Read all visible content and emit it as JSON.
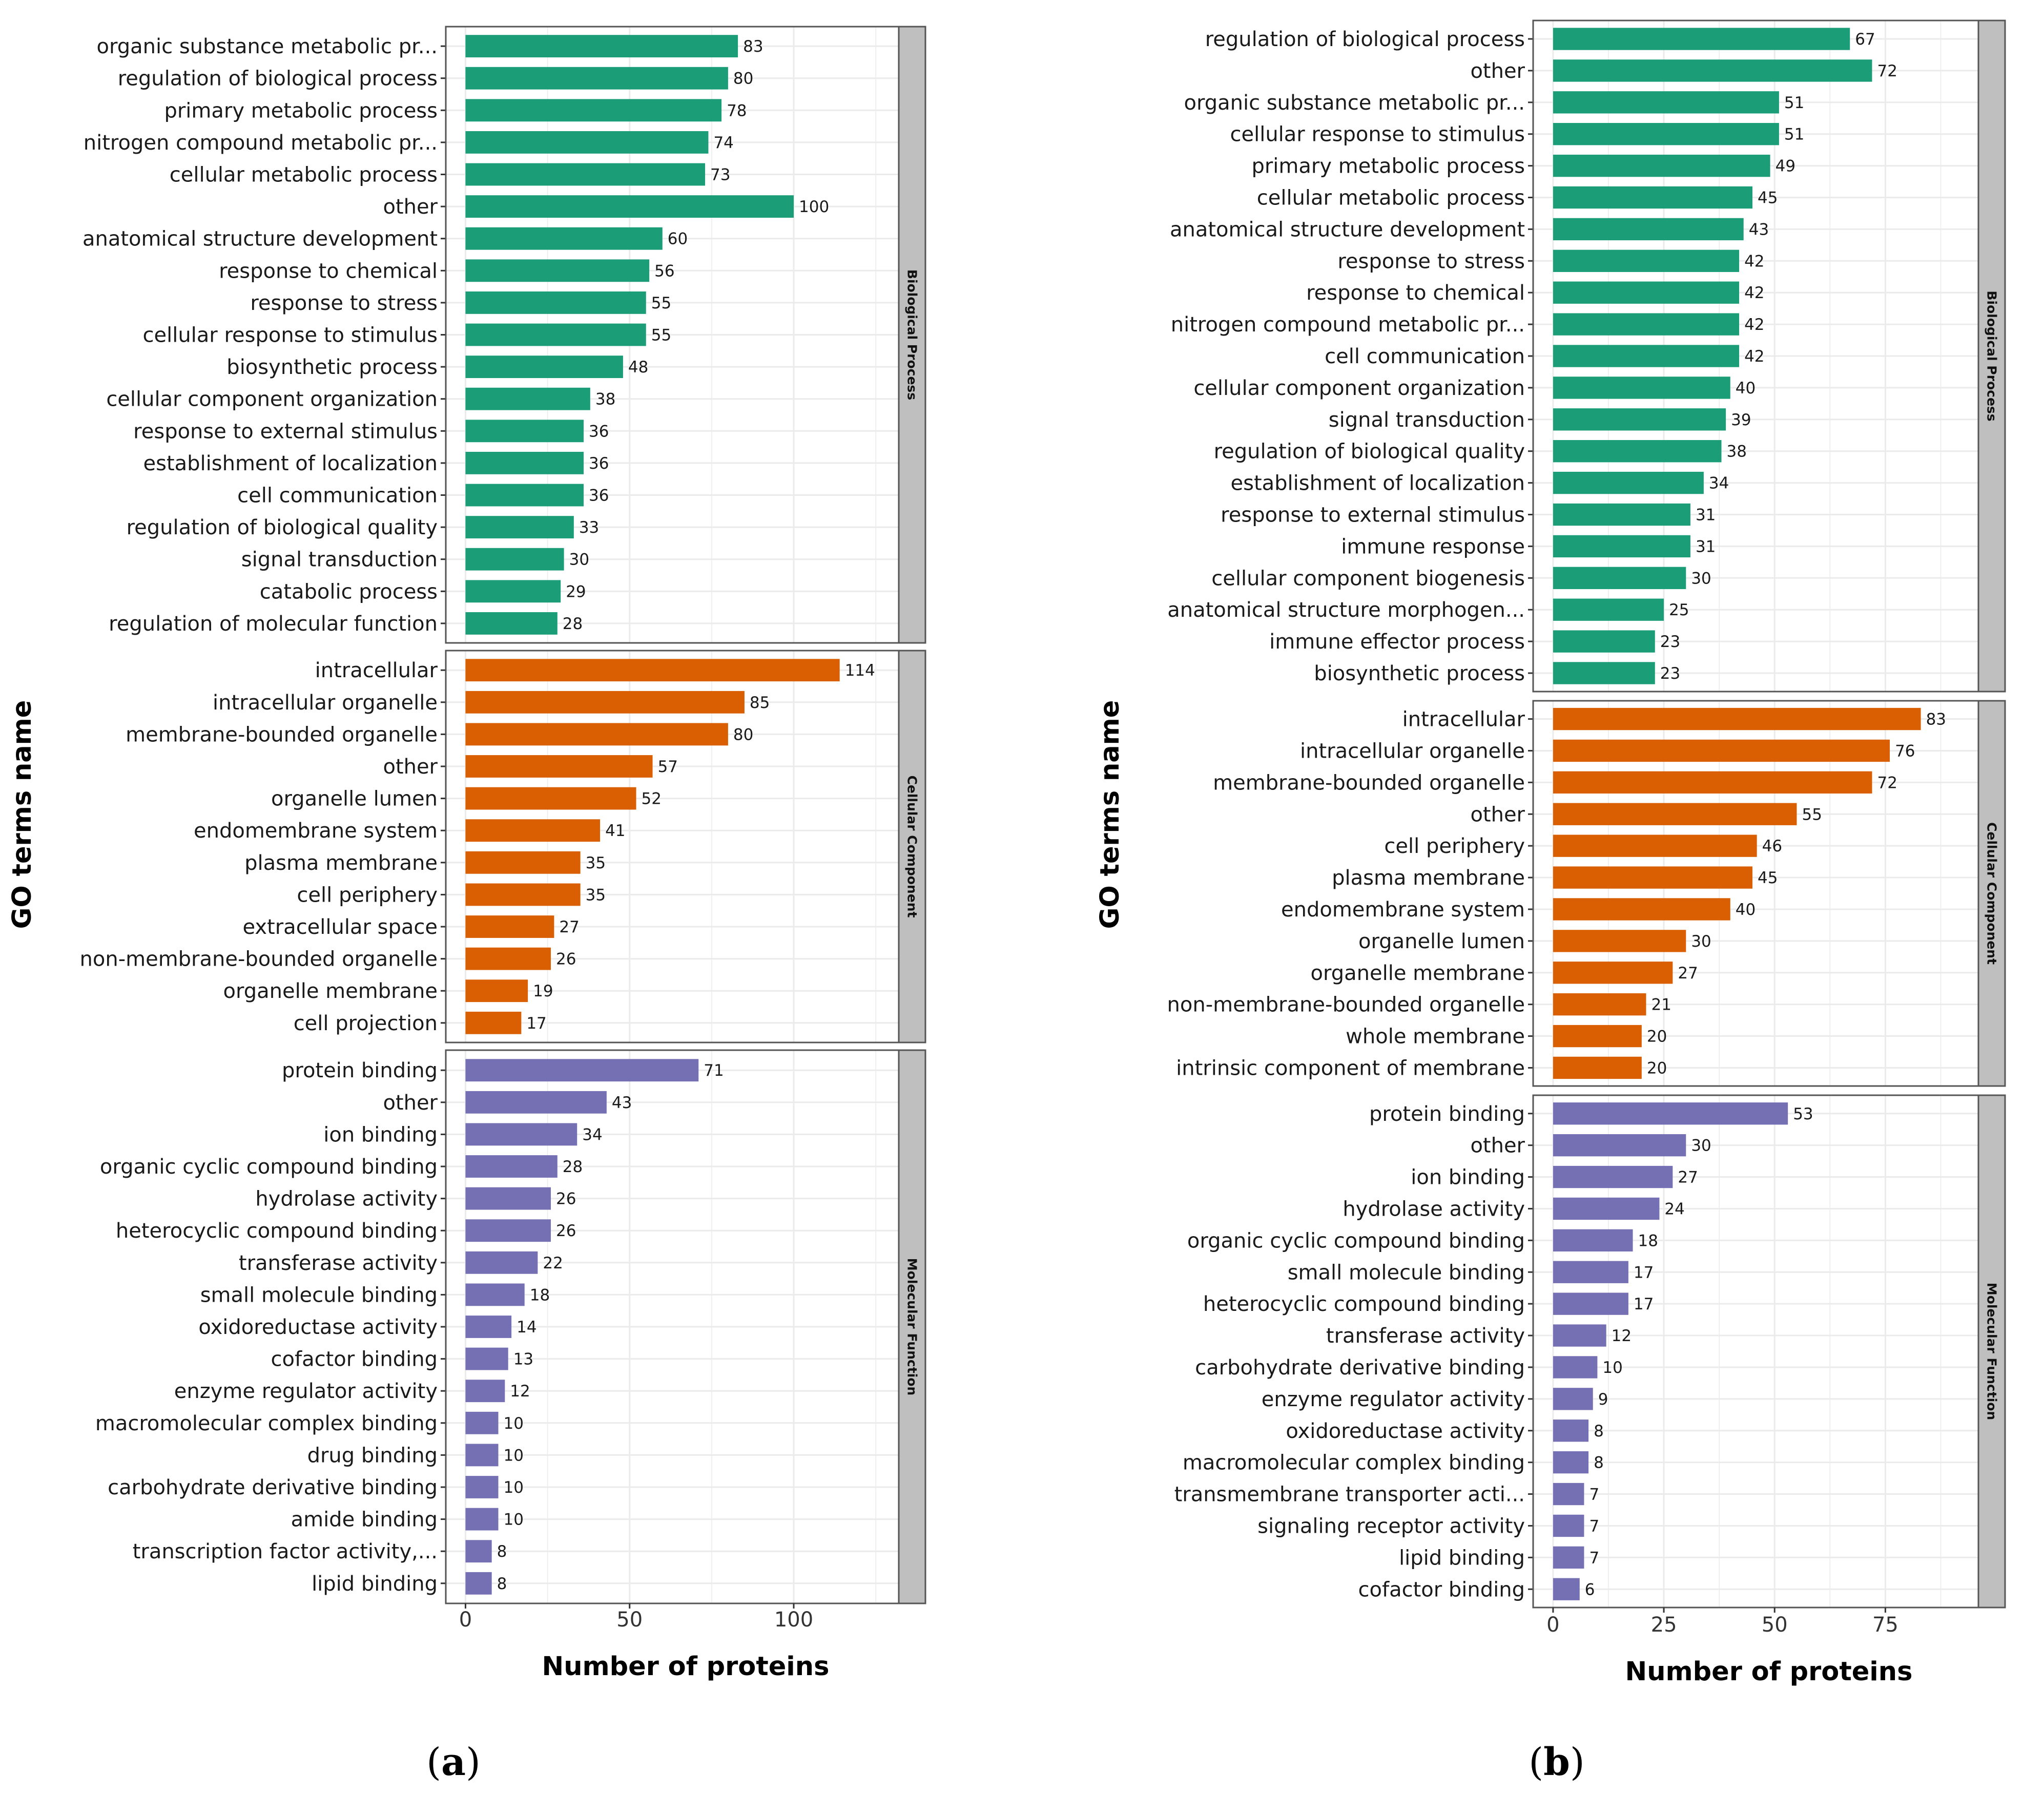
{
  "colors": {
    "biological_process": "#1b9e77",
    "cellular_component": "#d95f02",
    "molecular_function": "#7570b3",
    "strip": "#bfbfbf",
    "grid": "#ebebeb",
    "border": "#555555"
  },
  "chart_data": [
    {
      "id": "a",
      "panel_letter": "a",
      "type": "bar",
      "orientation": "horizontal",
      "xlabel": "Number of proteins",
      "ylabel": "GO terms name",
      "xlim": [
        -6,
        132
      ],
      "xticks": [
        0,
        50,
        100
      ],
      "grid": true,
      "facets": [
        {
          "name": "Biological Process",
          "color_key": "biological_process",
          "categories": [
            "organic substance metabolic pr...",
            "regulation of biological process",
            "primary metabolic process",
            "nitrogen compound metabolic pr...",
            "cellular metabolic process",
            "other",
            "anatomical structure development",
            "response to chemical",
            "response to stress",
            "cellular response to stimulus",
            "biosynthetic process",
            "cellular component organization",
            "response to external stimulus",
            "establishment of localization",
            "cell communication",
            "regulation of biological quality",
            "signal transduction",
            "catabolic process",
            "regulation of molecular function"
          ],
          "values": [
            83,
            80,
            78,
            74,
            73,
            100,
            60,
            56,
            55,
            55,
            48,
            38,
            36,
            36,
            36,
            33,
            30,
            29,
            28
          ]
        },
        {
          "name": "Cellular Component",
          "color_key": "cellular_component",
          "categories": [
            "intracellular",
            "intracellular organelle",
            "membrane-bounded organelle",
            "other",
            "organelle lumen",
            "endomembrane system",
            "plasma membrane",
            "cell periphery",
            "extracellular space",
            "non-membrane-bounded organelle",
            "organelle membrane",
            "cell projection"
          ],
          "values": [
            114,
            85,
            80,
            57,
            52,
            41,
            35,
            35,
            27,
            26,
            19,
            17
          ]
        },
        {
          "name": "Molecular Function",
          "color_key": "molecular_function",
          "categories": [
            "protein binding",
            "other",
            "ion binding",
            "organic cyclic compound binding",
            "hydrolase activity",
            "heterocyclic compound binding",
            "transferase activity",
            "small molecule binding",
            "oxidoreductase activity",
            "cofactor binding",
            "enzyme regulator activity",
            "macromolecular complex binding",
            "drug binding",
            "carbohydrate derivative binding",
            "amide binding",
            "transcription factor activity,...",
            "lipid binding"
          ],
          "values": [
            71,
            43,
            34,
            28,
            26,
            26,
            22,
            18,
            14,
            13,
            12,
            10,
            10,
            10,
            10,
            8,
            8
          ]
        }
      ]
    },
    {
      "id": "b",
      "panel_letter": "b",
      "type": "bar",
      "orientation": "horizontal",
      "xlabel": "Number of proteins",
      "ylabel": "GO terms name",
      "xlim": [
        -4.5,
        96
      ],
      "xticks": [
        0,
        25,
        50,
        75
      ],
      "grid": true,
      "facets": [
        {
          "name": "Biological Process",
          "color_key": "biological_process",
          "categories": [
            "regulation of biological process",
            "other",
            "organic substance metabolic pr...",
            "cellular response to stimulus",
            "primary metabolic process",
            "cellular metabolic process",
            "anatomical structure development",
            "response to stress",
            "response to chemical",
            "nitrogen compound metabolic pr...",
            "cell communication",
            "cellular component organization",
            "signal transduction",
            "regulation of biological quality",
            "establishment of localization",
            "response to external stimulus",
            "immune response",
            "cellular component biogenesis",
            "anatomical structure morphogen...",
            "immune effector process",
            "biosynthetic process"
          ],
          "values": [
            67,
            72,
            51,
            51,
            49,
            45,
            43,
            42,
            42,
            42,
            42,
            40,
            39,
            38,
            34,
            31,
            31,
            30,
            25,
            23,
            23
          ]
        },
        {
          "name": "Cellular Component",
          "color_key": "cellular_component",
          "categories": [
            "intracellular",
            "intracellular organelle",
            "membrane-bounded organelle",
            "other",
            "cell periphery",
            "plasma membrane",
            "endomembrane system",
            "organelle lumen",
            "organelle membrane",
            "non-membrane-bounded organelle",
            "whole membrane",
            "intrinsic component of membrane"
          ],
          "values": [
            83,
            76,
            72,
            55,
            46,
            45,
            40,
            30,
            27,
            21,
            20,
            20
          ]
        },
        {
          "name": "Molecular Function",
          "color_key": "molecular_function",
          "categories": [
            "protein binding",
            "other",
            "ion binding",
            "hydrolase activity",
            "organic cyclic compound binding",
            "small molecule binding",
            "heterocyclic compound binding",
            "transferase activity",
            "carbohydrate derivative binding",
            "enzyme regulator activity",
            "oxidoreductase activity",
            "macromolecular complex binding",
            "transmembrane transporter acti...",
            "signaling receptor activity",
            "lipid binding",
            "cofactor binding"
          ],
          "values": [
            53,
            30,
            27,
            24,
            18,
            17,
            17,
            12,
            10,
            9,
            8,
            8,
            7,
            7,
            7,
            6
          ]
        }
      ]
    }
  ]
}
